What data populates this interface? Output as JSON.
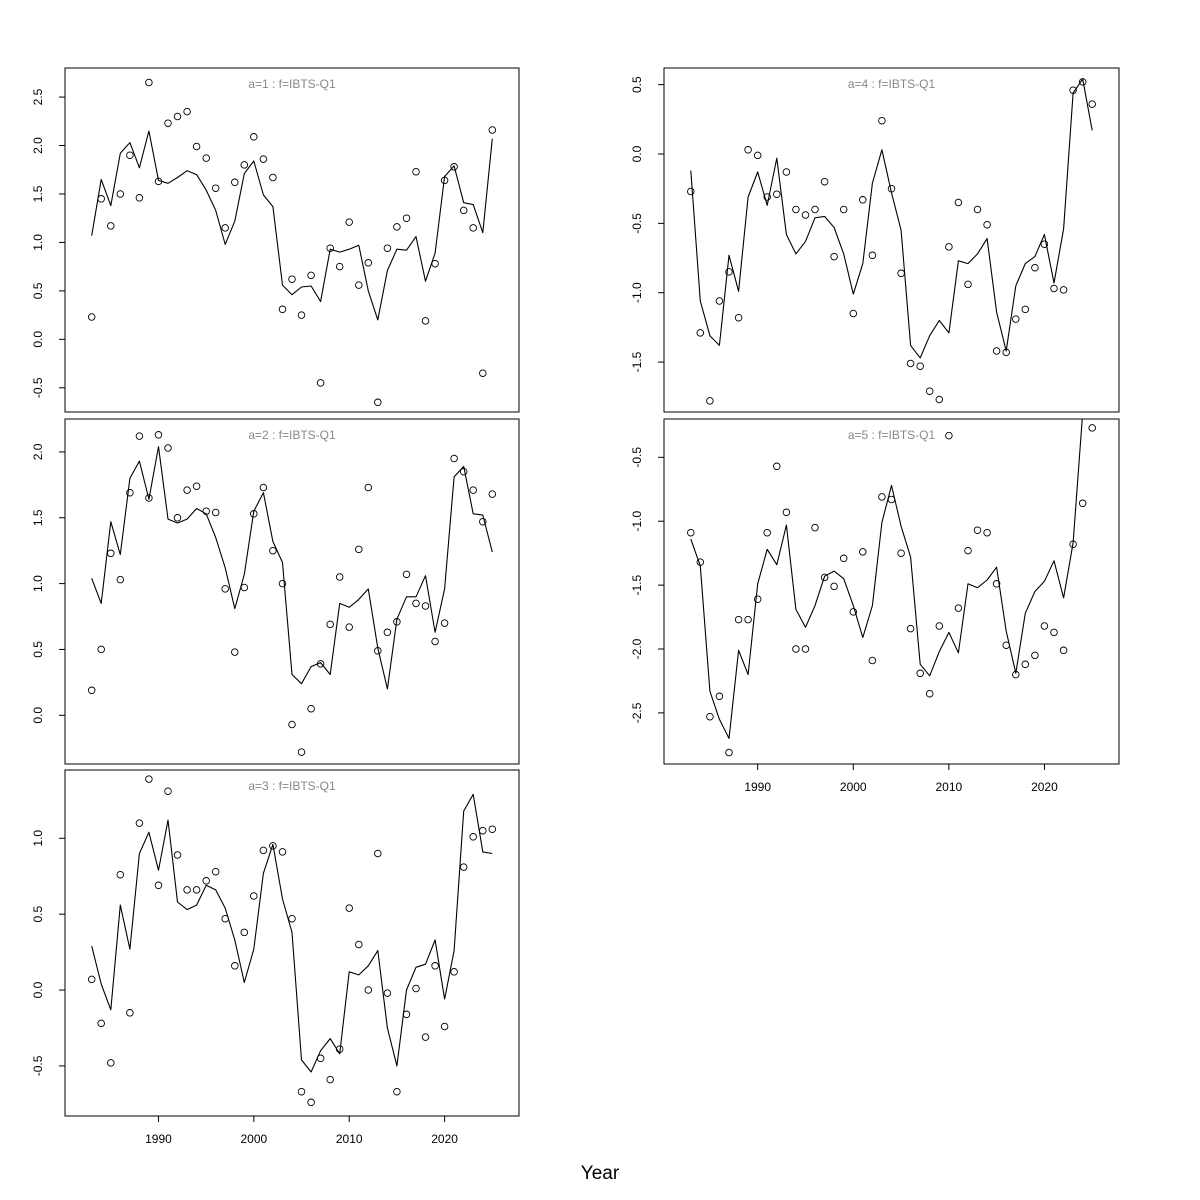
{
  "xlabel": "Year",
  "chart_data": [
    {
      "type": "line",
      "title": "a=1  :  f=IBTS-Q1",
      "xlim": [
        1980.2,
        2027.8
      ],
      "ylim": [
        -0.75,
        2.8
      ],
      "xticks": [
        1990,
        2000,
        2010,
        2020
      ],
      "xtick_labels": [
        "1990",
        "2000",
        "2010",
        "2020"
      ],
      "yticks": [
        -0.5,
        0,
        0.5,
        1,
        1.5,
        2,
        2.5
      ],
      "ytick_labels": [
        "-0.5",
        "0.0",
        "0.5",
        "1.0",
        "1.5",
        "2.0",
        "2.5"
      ],
      "show_x_axis": false,
      "grid": false,
      "series": [
        {
          "kind": "line",
          "x": [
            1983,
            1984,
            1985,
            1986,
            1987,
            1988,
            1989,
            1990,
            1991,
            1992,
            1993,
            1994,
            1995,
            1996,
            1997,
            1998,
            1999,
            2000,
            2001,
            2002,
            2003,
            2004,
            2005,
            2006,
            2007,
            2008,
            2009,
            2010,
            2011,
            2012,
            2013,
            2014,
            2015,
            2016,
            2017,
            2018,
            2019,
            2020,
            2021,
            2022,
            2023,
            2024,
            2025
          ],
          "y": [
            1.07,
            1.65,
            1.38,
            1.92,
            2.03,
            1.77,
            2.15,
            1.64,
            1.61,
            1.67,
            1.74,
            1.7,
            1.54,
            1.33,
            0.98,
            1.22,
            1.71,
            1.84,
            1.49,
            1.37,
            0.56,
            0.46,
            0.54,
            0.55,
            0.39,
            0.93,
            0.9,
            0.93,
            0.97,
            0.5,
            0.2,
            0.71,
            0.93,
            0.92,
            1.06,
            0.6,
            0.89,
            1.68,
            1.79,
            1.41,
            1.39,
            1.1,
            2.07
          ]
        },
        {
          "kind": "points",
          "x": [
            1983,
            1984,
            1985,
            1986,
            1987,
            1988,
            1989,
            1990,
            1991,
            1992,
            1993,
            1994,
            1995,
            1996,
            1997,
            1998,
            1999,
            2000,
            2001,
            2002,
            2003,
            2004,
            2005,
            2006,
            2007,
            2008,
            2009,
            2010,
            2011,
            2012,
            2013,
            2014,
            2015,
            2016,
            2017,
            2018,
            2019,
            2020,
            2021,
            2022,
            2023,
            2024,
            2025
          ],
          "y": [
            0.23,
            1.45,
            1.17,
            1.5,
            1.9,
            1.46,
            2.65,
            1.63,
            2.23,
            2.3,
            2.35,
            1.99,
            1.87,
            1.56,
            1.15,
            1.62,
            1.8,
            2.09,
            1.86,
            1.67,
            0.31,
            0.62,
            0.25,
            0.66,
            -0.45,
            0.94,
            0.75,
            1.21,
            0.56,
            0.79,
            -0.65,
            0.94,
            1.16,
            1.25,
            1.73,
            0.19,
            0.78,
            1.64,
            1.78,
            1.33,
            1.15,
            -0.35,
            2.16
          ]
        }
      ]
    },
    {
      "type": "line",
      "title": "a=2  :  f=IBTS-Q1",
      "xlim": [
        1980.2,
        2027.8
      ],
      "ylim": [
        -0.37,
        2.25
      ],
      "xticks": [
        1990,
        2000,
        2010,
        2020
      ],
      "xtick_labels": [
        "1990",
        "2000",
        "2010",
        "2020"
      ],
      "yticks": [
        0,
        0.5,
        1,
        1.5,
        2
      ],
      "ytick_labels": [
        "0.0",
        "0.5",
        "1.0",
        "1.5",
        "2.0"
      ],
      "show_x_axis": false,
      "grid": false,
      "series": [
        {
          "kind": "line",
          "x": [
            1983,
            1984,
            1985,
            1986,
            1987,
            1988,
            1989,
            1990,
            1991,
            1992,
            1993,
            1994,
            1995,
            1996,
            1997,
            1998,
            1999,
            2000,
            2001,
            2002,
            2003,
            2004,
            2005,
            2006,
            2007,
            2008,
            2009,
            2010,
            2011,
            2012,
            2013,
            2014,
            2015,
            2016,
            2017,
            2018,
            2019,
            2020,
            2021,
            2022,
            2023,
            2024,
            2025
          ],
          "y": [
            1.04,
            0.85,
            1.47,
            1.22,
            1.8,
            1.93,
            1.64,
            2.04,
            1.49,
            1.46,
            1.49,
            1.57,
            1.53,
            1.35,
            1.12,
            0.81,
            1.07,
            1.55,
            1.69,
            1.32,
            1.16,
            0.31,
            0.24,
            0.37,
            0.4,
            0.31,
            0.85,
            0.82,
            0.88,
            0.96,
            0.51,
            0.2,
            0.73,
            0.9,
            0.9,
            1.06,
            0.63,
            0.96,
            1.81,
            1.89,
            1.53,
            1.52,
            1.24
          ]
        },
        {
          "kind": "points",
          "x": [
            1983,
            1984,
            1985,
            1986,
            1987,
            1988,
            1989,
            1990,
            1991,
            1992,
            1993,
            1994,
            1995,
            1996,
            1997,
            1998,
            1999,
            2000,
            2001,
            2002,
            2003,
            2004,
            2005,
            2006,
            2007,
            2008,
            2009,
            2010,
            2011,
            2012,
            2013,
            2014,
            2015,
            2016,
            2017,
            2018,
            2019,
            2020,
            2021,
            2022,
            2023,
            2024,
            2025
          ],
          "y": [
            0.19,
            0.5,
            1.23,
            1.03,
            1.69,
            2.12,
            1.65,
            2.13,
            2.03,
            1.5,
            1.71,
            1.74,
            1.55,
            1.54,
            0.96,
            0.48,
            0.97,
            1.53,
            1.73,
            1.25,
            1.0,
            -0.07,
            -0.28,
            0.05,
            0.39,
            0.69,
            1.05,
            0.67,
            1.26,
            1.73,
            0.49,
            0.63,
            0.71,
            1.07,
            0.85,
            0.83,
            0.56,
            0.7,
            1.95,
            1.85,
            1.71,
            1.47,
            1.68
          ]
        }
      ]
    },
    {
      "type": "line",
      "title": "a=3  :  f=IBTS-Q1",
      "xlim": [
        1980.2,
        2027.8
      ],
      "ylim": [
        -0.83,
        1.45
      ],
      "xticks": [
        1990,
        2000,
        2010,
        2020
      ],
      "xtick_labels": [
        "1990",
        "2000",
        "2010",
        "2020"
      ],
      "yticks": [
        -0.5,
        0,
        0.5,
        1
      ],
      "ytick_labels": [
        "-0.5",
        "0.0",
        "0.5",
        "1.0"
      ],
      "show_x_axis": true,
      "grid": false,
      "series": [
        {
          "kind": "line",
          "x": [
            1983,
            1984,
            1985,
            1986,
            1987,
            1988,
            1989,
            1990,
            1991,
            1992,
            1993,
            1994,
            1995,
            1996,
            1997,
            1998,
            1999,
            2000,
            2001,
            2002,
            2003,
            2004,
            2005,
            2006,
            2007,
            2008,
            2009,
            2010,
            2011,
            2012,
            2013,
            2014,
            2015,
            2016,
            2017,
            2018,
            2019,
            2020,
            2021,
            2022,
            2023,
            2024,
            2025
          ],
          "y": [
            0.29,
            0.04,
            -0.13,
            0.56,
            0.27,
            0.9,
            1.04,
            0.79,
            1.12,
            0.58,
            0.53,
            0.56,
            0.69,
            0.66,
            0.54,
            0.33,
            0.05,
            0.27,
            0.77,
            0.96,
            0.6,
            0.38,
            -0.46,
            -0.54,
            -0.4,
            -0.32,
            -0.42,
            0.12,
            0.1,
            0.16,
            0.26,
            -0.25,
            -0.5,
            0.0,
            0.15,
            0.17,
            0.33,
            -0.06,
            0.26,
            1.18,
            1.29,
            0.91,
            0.9
          ]
        },
        {
          "kind": "points",
          "x": [
            1983,
            1984,
            1985,
            1986,
            1987,
            1988,
            1989,
            1990,
            1991,
            1992,
            1993,
            1994,
            1995,
            1996,
            1997,
            1998,
            1999,
            2000,
            2001,
            2002,
            2003,
            2004,
            2005,
            2006,
            2007,
            2008,
            2009,
            2010,
            2011,
            2012,
            2013,
            2014,
            2015,
            2016,
            2017,
            2018,
            2019,
            2020,
            2021,
            2022,
            2023,
            2024,
            2025
          ],
          "y": [
            0.07,
            -0.22,
            -0.48,
            0.76,
            -0.15,
            1.1,
            1.39,
            0.69,
            1.31,
            0.89,
            0.66,
            0.66,
            0.72,
            0.78,
            0.47,
            0.16,
            0.38,
            0.62,
            0.92,
            0.95,
            0.91,
            0.47,
            -0.67,
            -0.74,
            -0.45,
            -0.59,
            -0.39,
            0.54,
            0.3,
            0.0,
            0.9,
            -0.02,
            -0.67,
            -0.16,
            0.01,
            -0.31,
            0.16,
            -0.24,
            0.12,
            0.81,
            1.01,
            1.05,
            1.06
          ]
        }
      ]
    },
    {
      "type": "line",
      "title": "a=4  :  f=IBTS-Q1",
      "xlim": [
        1980.2,
        2027.8
      ],
      "ylim": [
        -1.86,
        0.62
      ],
      "xticks": [
        1990,
        2000,
        2010,
        2020
      ],
      "xtick_labels": [
        "1990",
        "2000",
        "2010",
        "2020"
      ],
      "yticks": [
        -1.5,
        -1,
        -0.5,
        0,
        0.5
      ],
      "ytick_labels": [
        "-1.5",
        "-1.0",
        "-0.5",
        "0.0",
        "0.5"
      ],
      "show_x_axis": false,
      "grid": false,
      "series": [
        {
          "kind": "line",
          "x": [
            1983,
            1984,
            1985,
            1986,
            1987,
            1988,
            1989,
            1990,
            1991,
            1992,
            1993,
            1994,
            1995,
            1996,
            1997,
            1998,
            1999,
            2000,
            2001,
            2002,
            2003,
            2004,
            2005,
            2006,
            2007,
            2008,
            2009,
            2010,
            2011,
            2012,
            2013,
            2014,
            2015,
            2016,
            2017,
            2018,
            2019,
            2020,
            2021,
            2022,
            2023,
            2024,
            2025
          ],
          "y": [
            -0.12,
            -1.06,
            -1.31,
            -1.38,
            -0.73,
            -0.99,
            -0.31,
            -0.13,
            -0.37,
            -0.03,
            -0.58,
            -0.72,
            -0.63,
            -0.46,
            -0.45,
            -0.53,
            -0.72,
            -1.01,
            -0.79,
            -0.21,
            0.03,
            -0.28,
            -0.55,
            -1.38,
            -1.47,
            -1.31,
            -1.2,
            -1.29,
            -0.77,
            -0.79,
            -0.72,
            -0.61,
            -1.14,
            -1.42,
            -0.95,
            -0.79,
            -0.74,
            -0.58,
            -0.93,
            -0.54,
            0.44,
            0.54,
            0.17
          ]
        },
        {
          "kind": "points",
          "x": [
            1983,
            1984,
            1985,
            1986,
            1987,
            1988,
            1989,
            1990,
            1991,
            1992,
            1993,
            1994,
            1995,
            1996,
            1997,
            1998,
            1999,
            2000,
            2001,
            2002,
            2003,
            2004,
            2005,
            2006,
            2007,
            2008,
            2009,
            2010,
            2011,
            2012,
            2013,
            2014,
            2015,
            2016,
            2017,
            2018,
            2019,
            2020,
            2021,
            2022,
            2023,
            2024,
            2025
          ],
          "y": [
            -0.27,
            -1.29,
            -1.78,
            -1.06,
            -0.85,
            -1.18,
            0.03,
            -0.01,
            -0.31,
            -0.29,
            -0.13,
            -0.4,
            -0.44,
            -0.4,
            -0.2,
            -0.74,
            -0.4,
            -1.15,
            -0.33,
            -0.73,
            0.24,
            -0.25,
            -0.86,
            -1.51,
            -1.53,
            -1.71,
            -1.77,
            -0.67,
            -0.35,
            -0.94,
            -0.4,
            -0.51,
            -1.42,
            -1.43,
            -1.19,
            -1.12,
            -0.82,
            -0.65,
            -0.97,
            -0.98,
            0.46,
            0.52,
            0.36
          ]
        }
      ]
    },
    {
      "type": "line",
      "title": "a=5  :  f=IBTS-Q1",
      "xlim": [
        1980.2,
        2027.8
      ],
      "ylim": [
        -2.9,
        -0.2
      ],
      "xticks": [
        1990,
        2000,
        2010,
        2020
      ],
      "xtick_labels": [
        "1990",
        "2000",
        "2010",
        "2020"
      ],
      "yticks": [
        -2.5,
        -2,
        -1.5,
        -1,
        -0.5
      ],
      "ytick_labels": [
        "-2.5",
        "-2.0",
        "-1.5",
        "-1.0",
        "-0.5"
      ],
      "show_x_axis": true,
      "grid": false,
      "series": [
        {
          "kind": "line",
          "x": [
            1983,
            1984,
            1985,
            1986,
            1987,
            1988,
            1989,
            1990,
            1991,
            1992,
            1993,
            1994,
            1995,
            1996,
            1997,
            1998,
            1999,
            2000,
            2001,
            2002,
            2003,
            2004,
            2005,
            2006,
            2007,
            2008,
            2009,
            2010,
            2011,
            2012,
            2013,
            2014,
            2015,
            2016,
            2017,
            2018,
            2019,
            2020,
            2021,
            2022,
            2023,
            2024,
            2025
          ],
          "y": [
            -1.14,
            -1.35,
            -2.33,
            -2.55,
            -2.7,
            -2.01,
            -2.2,
            -1.49,
            -1.22,
            -1.34,
            -1.03,
            -1.69,
            -1.83,
            -1.66,
            -1.43,
            -1.39,
            -1.45,
            -1.66,
            -1.91,
            -1.66,
            -1.01,
            -0.72,
            -1.04,
            -1.28,
            -2.12,
            -2.21,
            -2.02,
            -1.87,
            -2.03,
            -1.49,
            -1.52,
            -1.46,
            -1.36,
            -1.86,
            -2.19,
            -1.72,
            -1.55,
            -1.47,
            -1.31,
            -1.6,
            -1.17,
            -0.15,
            -0.1
          ]
        },
        {
          "kind": "points",
          "x": [
            1983,
            1984,
            1985,
            1986,
            1987,
            1988,
            1989,
            1990,
            1991,
            1992,
            1993,
            1994,
            1995,
            1996,
            1997,
            1998,
            1999,
            2000,
            2001,
            2002,
            2003,
            2004,
            2005,
            2006,
            2007,
            2008,
            2009,
            2010,
            2011,
            2012,
            2013,
            2014,
            2015,
            2016,
            2017,
            2018,
            2019,
            2020,
            2021,
            2022,
            2023,
            2024,
            2025
          ],
          "y": [
            -1.09,
            -1.32,
            -2.53,
            -2.37,
            -2.81,
            -1.77,
            -1.77,
            -1.61,
            -1.09,
            -0.57,
            -0.93,
            -2.0,
            -2.0,
            -1.05,
            -1.44,
            -1.51,
            -1.29,
            -1.71,
            -1.24,
            -2.09,
            -0.81,
            -0.83,
            -1.25,
            -1.84,
            -2.19,
            -2.35,
            -1.82,
            -0.33,
            -1.68,
            -1.23,
            -1.07,
            -1.09,
            -1.49,
            -1.97,
            -2.2,
            -2.12,
            -2.05,
            -1.82,
            -1.87,
            -2.01,
            -1.18,
            -0.86,
            -0.27
          ]
        }
      ]
    }
  ]
}
